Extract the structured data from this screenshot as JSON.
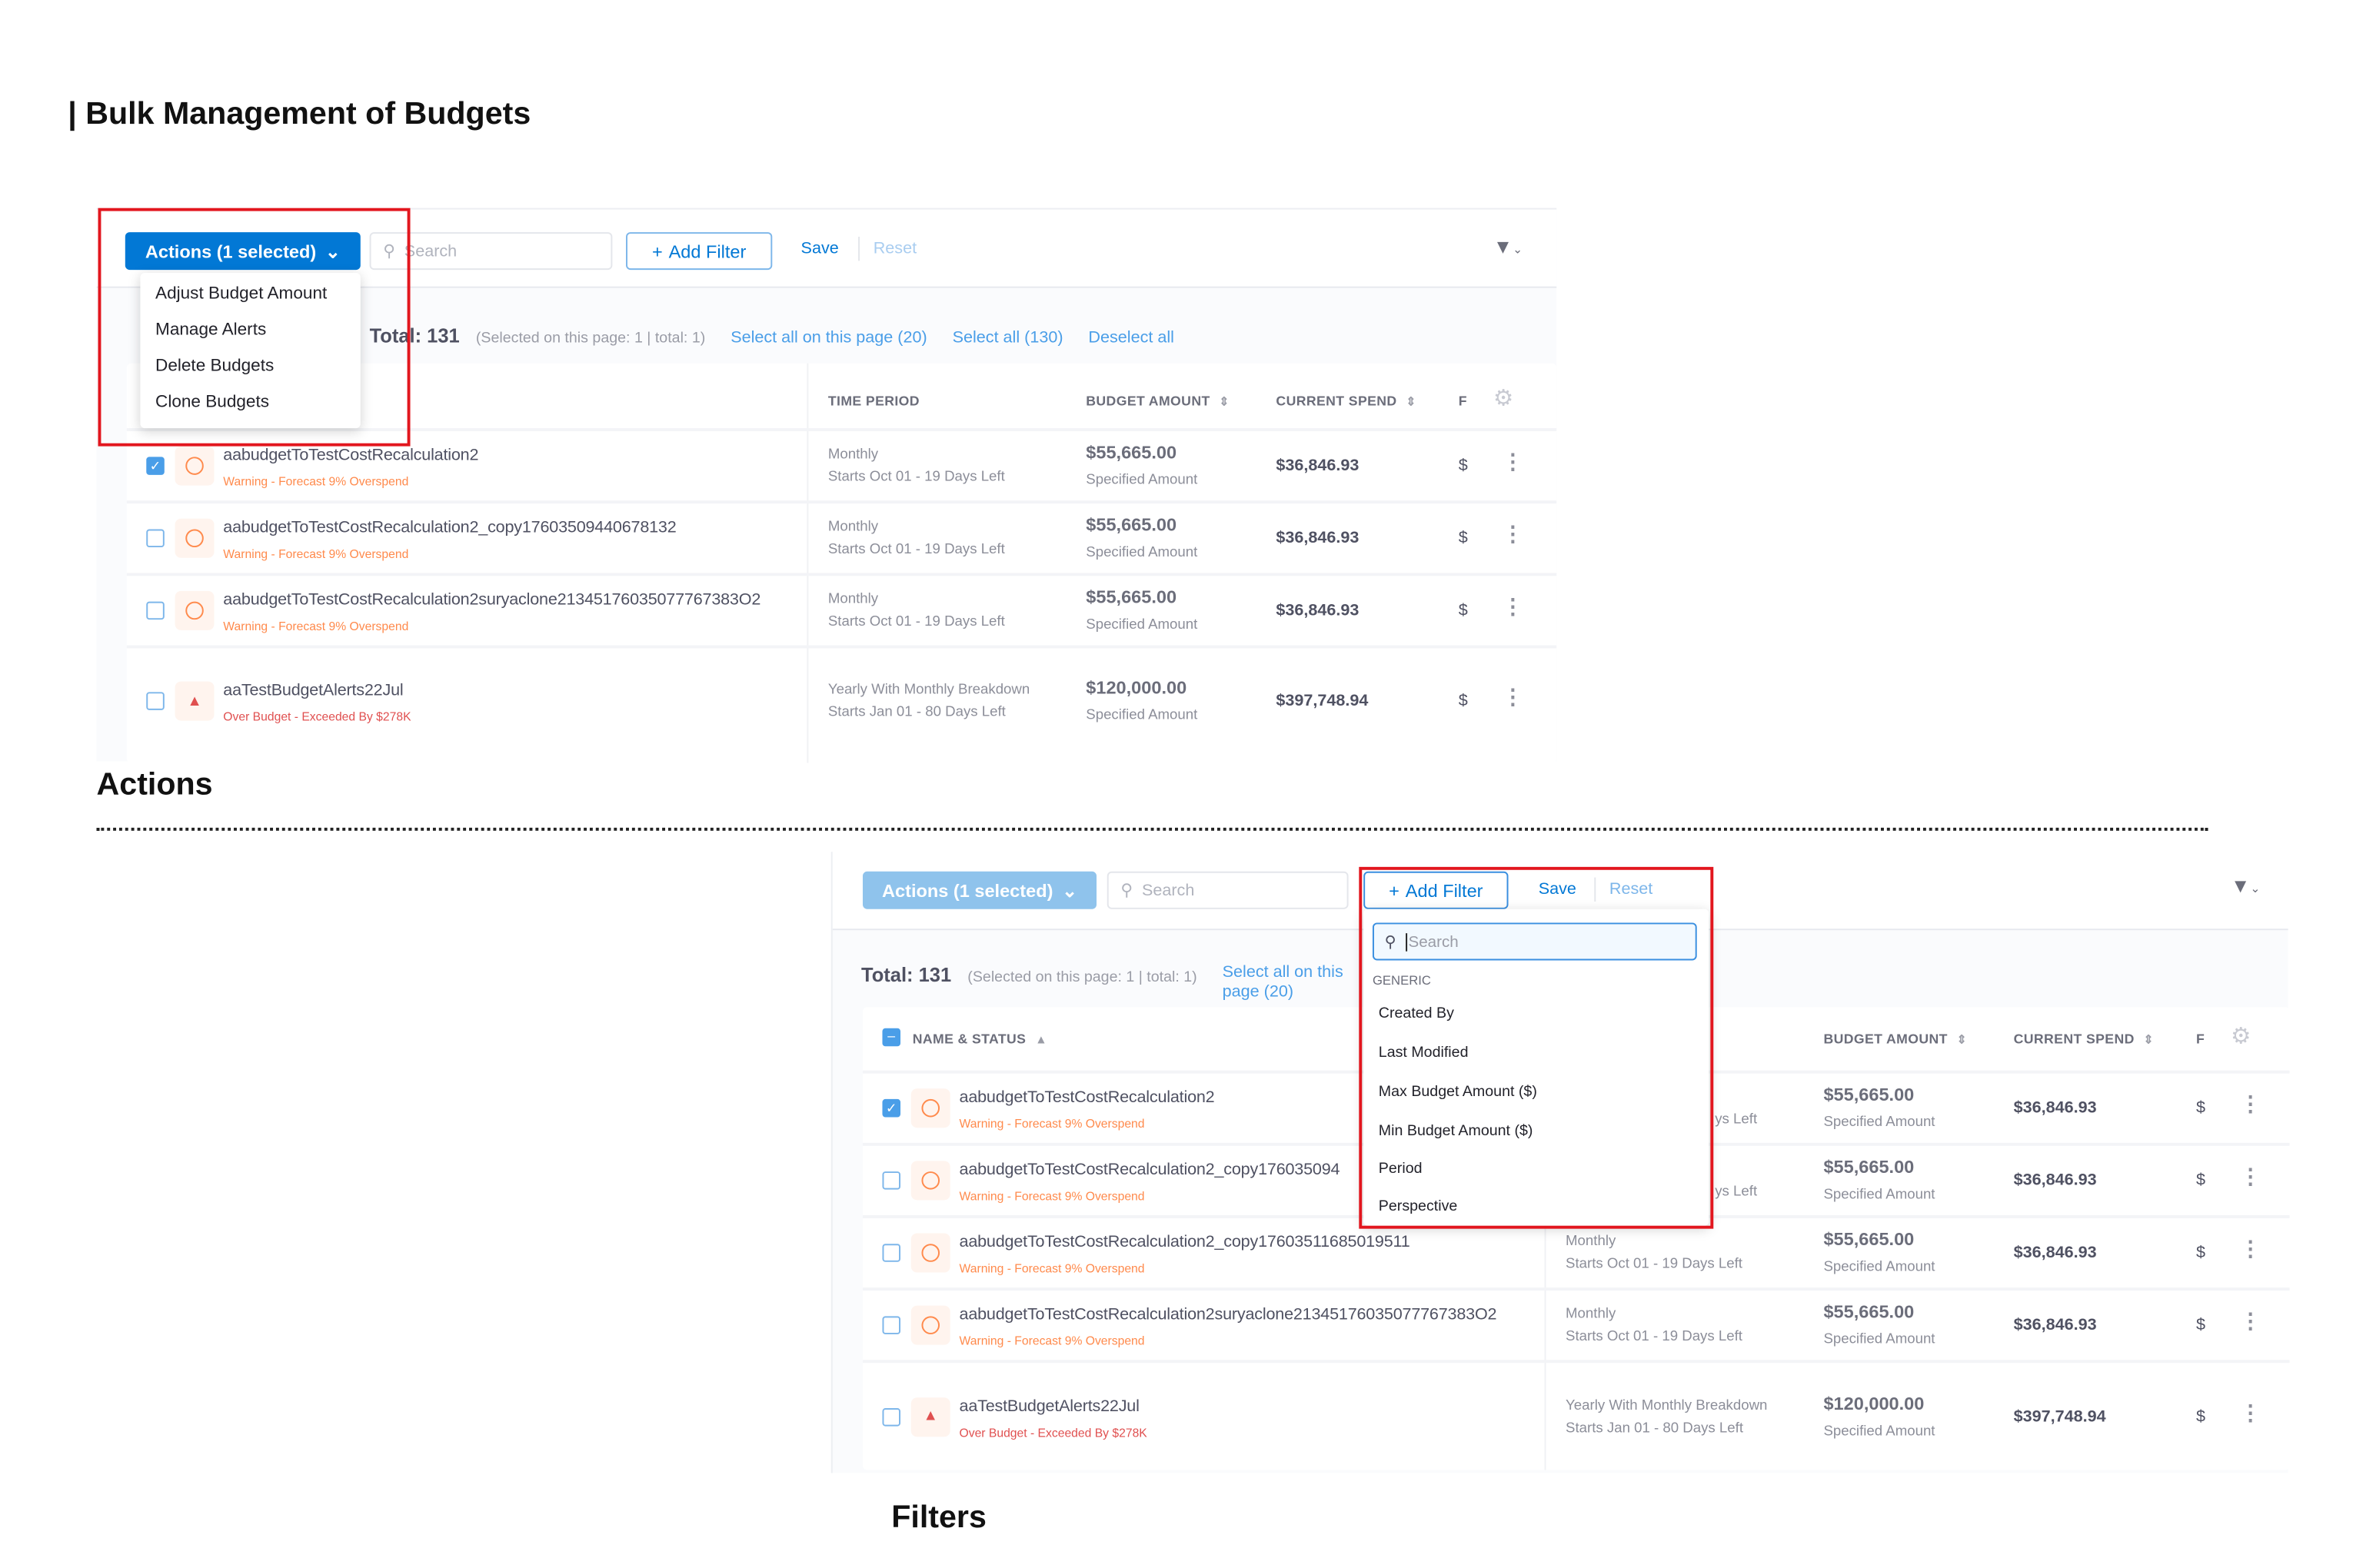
{
  "page_title": "| Bulk Management of Budgets",
  "sections": {
    "actions_label": "Actions",
    "filters_label": "Filters"
  },
  "colors": {
    "primary": "#0278d5",
    "primary_disabled": "#8fc3ec",
    "highlight": "#e2161e",
    "warning": "#ff8a4c",
    "danger": "#e05050"
  },
  "toolbar": {
    "actions_button": "Actions (1 selected)",
    "search_placeholder": "Search",
    "add_filter": "Add Filter",
    "save": "Save",
    "reset": "Reset",
    "filter_icon": "funnel-icon"
  },
  "actions_menu": [
    "Adjust Budget Amount",
    "Manage Alerts",
    "Delete Budgets",
    "Clone Budgets"
  ],
  "selection_bar": {
    "total": "Total: 131",
    "selected_info": "(Selected on this page: 1 | total: 1)",
    "select_page": "Select all on this page (20)",
    "select_all": "Select all (130)",
    "deselect_all": "Deselect all"
  },
  "columns": {
    "name": "NAME & STATUS",
    "time_period": "TIME PERIOD",
    "budget_amount": "BUDGET AMOUNT",
    "current_spend": "CURRENT SPEND",
    "forecast_partial": "F"
  },
  "filter_menu": {
    "search_placeholder": "Search",
    "group": "GENERIC",
    "items": [
      "Created By",
      "Last Modified",
      "Max Budget Amount ($)",
      "Min Budget Amount ($)",
      "Period",
      "Perspective"
    ]
  },
  "top_rows": [
    {
      "checked": true,
      "status": "warning",
      "name": "aabudgetToTestCostRecalculation2",
      "status_text": "Warning - Forecast 9% Overspend",
      "period": "Monthly",
      "period_detail": "Starts Oct 01 - 19 Days Left",
      "amount": "$55,665.00",
      "amount_type": "Specified Amount",
      "spend": "$36,846.93",
      "forecast": "$"
    },
    {
      "checked": false,
      "status": "warning",
      "name": "aabudgetToTestCostRecalculation2_copy17603509440678132",
      "status_text": "Warning - Forecast 9% Overspend",
      "period": "Monthly",
      "period_detail": "Starts Oct 01 - 19 Days Left",
      "amount": "$55,665.00",
      "amount_type": "Specified Amount",
      "spend": "$36,846.93",
      "forecast": "$"
    },
    {
      "checked": false,
      "status": "warning",
      "name": "aabudgetToTestCostRecalculation2suryaclone21345176035077767383O2",
      "status_text": "Warning - Forecast 9% Overspend",
      "period": "Monthly",
      "period_detail": "Starts Oct 01 - 19 Days Left",
      "amount": "$55,665.00",
      "amount_type": "Specified Amount",
      "spend": "$36,846.93",
      "forecast": "$"
    },
    {
      "checked": false,
      "status": "over",
      "name": "aaTestBudgetAlerts22Jul",
      "status_text": "Over Budget - Exceeded By $278K",
      "period": "Yearly With Monthly Breakdown",
      "period_detail": "Starts Jan 01 - 80 Days Left",
      "amount": "$120,000.00",
      "amount_type": "Specified Amount",
      "spend": "$397,748.94",
      "forecast": "$"
    }
  ],
  "bottom_rows": [
    {
      "checked": true,
      "status": "warning",
      "name": "aabudgetToTestCostRecalculation2",
      "status_text": "Warning - Forecast 9% Overspend",
      "period": "",
      "period_detail": "ys Left",
      "amount": "$55,665.00",
      "amount_type": "Specified Amount",
      "spend": "$36,846.93",
      "forecast": "$"
    },
    {
      "checked": false,
      "status": "warning",
      "name": "aabudgetToTestCostRecalculation2_copy176035094",
      "status_text": "Warning - Forecast 9% Overspend",
      "period": "",
      "period_detail": "ys Left",
      "amount": "$55,665.00",
      "amount_type": "Specified Amount",
      "spend": "$36,846.93",
      "forecast": "$"
    },
    {
      "checked": false,
      "status": "warning",
      "name": "aabudgetToTestCostRecalculation2_copy1760351168501951​1",
      "status_text": "Warning - Forecast 9% Overspend",
      "period": "Monthly",
      "period_detail": "Starts Oct 01 - 19 Days Left",
      "amount": "$55,665.00",
      "amount_type": "Specified Amount",
      "spend": "$36,846.93",
      "forecast": "$"
    },
    {
      "checked": false,
      "status": "warning",
      "name": "aabudgetToTestCostRecalculation2suryaclone21345176035077767383O2",
      "status_text": "Warning - Forecast 9% Overspend",
      "period": "Monthly",
      "period_detail": "Starts Oct 01 - 19 Days Left",
      "amount": "$55,665.00",
      "amount_type": "Specified Amount",
      "spend": "$36,846.93",
      "forecast": "$"
    },
    {
      "checked": false,
      "status": "over",
      "name": "aaTestBudgetAlerts22Jul",
      "status_text": "Over Budget - Exceeded By $278K",
      "period": "Yearly With Monthly Breakdown",
      "period_detail": "Starts Jan 01 - 80 Days Left",
      "amount": "$120,000.00",
      "amount_type": "Specified Amount",
      "spend": "$397,748.94",
      "forecast": "$"
    }
  ]
}
